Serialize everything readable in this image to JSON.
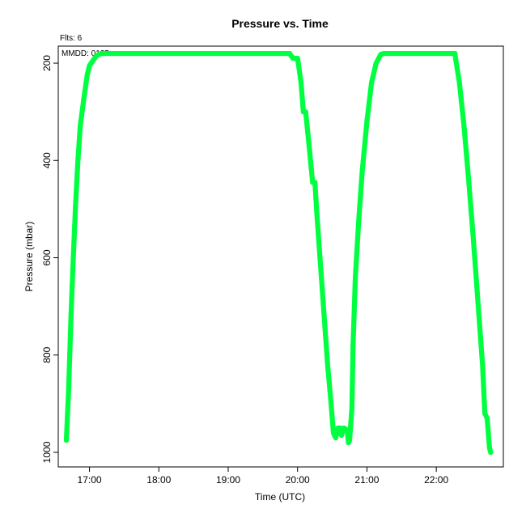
{
  "chart_data": {
    "type": "scatter",
    "title": "Pressure  vs. Time",
    "annotations": {
      "flights": "Flts: 6",
      "date": "MMDD: 0125"
    },
    "xlabel": "Time (UTC)",
    "ylabel": "Pressure (mbar)",
    "x_ticks": [
      "17:00",
      "18:00",
      "19:00",
      "20:00",
      "21:00",
      "22:00"
    ],
    "y_ticks": [
      "200",
      "400",
      "600",
      "800",
      "1000"
    ],
    "xlim": [
      "16:33",
      "22:58"
    ],
    "ylim": [
      1030,
      165
    ],
    "y_axis_inverted": true,
    "grid": false,
    "point_color": "#00ff40",
    "series": [
      {
        "x": [
          "16:40",
          "16:42",
          "16:44",
          "16:46",
          "16:48",
          "16:50",
          "16:52",
          "16:55",
          "16:58",
          "17:00",
          "17:03",
          "17:06",
          "17:10",
          "17:12"
        ],
        "y": [
          975,
          870,
          720,
          600,
          490,
          400,
          330,
          275,
          225,
          205,
          195,
          185,
          180,
          180
        ]
      },
      {
        "x": [
          "17:12",
          "17:30",
          "18:00",
          "18:30",
          "19:00",
          "19:30",
          "19:53"
        ],
        "y": [
          180,
          180,
          180,
          180,
          180,
          180,
          180
        ]
      },
      {
        "x": [
          "19:53",
          "19:56",
          "20:00",
          "20:03",
          "20:05",
          "20:07",
          "20:10",
          "20:13",
          "20:15",
          "20:17",
          "20:20",
          "20:23",
          "20:26",
          "20:29",
          "20:31",
          "20:33",
          "20:35",
          "20:37",
          "20:38",
          "20:40",
          "20:43",
          "20:44",
          "20:45",
          "20:47",
          "20:48"
        ],
        "y": [
          180,
          190,
          190,
          240,
          300,
          300,
          370,
          445,
          445,
          520,
          620,
          720,
          820,
          900,
          960,
          970,
          950,
          950,
          965,
          950,
          955,
          980,
          975,
          910,
          780
        ]
      },
      {
        "x": [
          "20:48",
          "20:50",
          "20:53",
          "20:56",
          "21:00",
          "21:04",
          "21:08",
          "21:12",
          "21:15"
        ],
        "y": [
          780,
          640,
          520,
          420,
          320,
          240,
          200,
          182,
          180
        ]
      },
      {
        "x": [
          "21:15",
          "21:30",
          "21:50",
          "22:10",
          "22:16"
        ],
        "y": [
          180,
          180,
          180,
          180,
          180
        ]
      },
      {
        "x": [
          "22:16",
          "22:20",
          "22:24",
          "22:28",
          "22:32",
          "22:36",
          "22:40",
          "22:42",
          "22:44",
          "22:46",
          "22:47"
        ],
        "y": [
          180,
          240,
          330,
          440,
          560,
          690,
          820,
          920,
          930,
          990,
          1000
        ]
      }
    ]
  }
}
